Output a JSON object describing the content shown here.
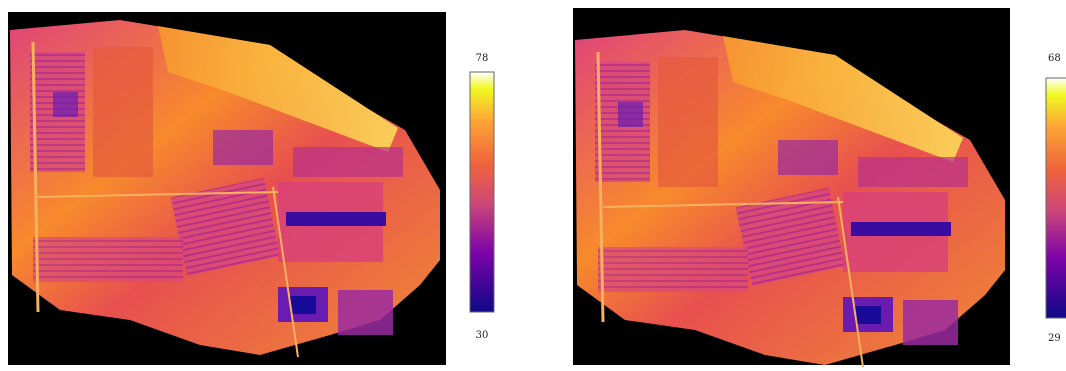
{
  "panels": [
    {
      "colorbar": {
        "max": "78",
        "min": "30"
      }
    },
    {
      "colorbar": {
        "max": "68",
        "min": "29"
      }
    }
  ]
}
